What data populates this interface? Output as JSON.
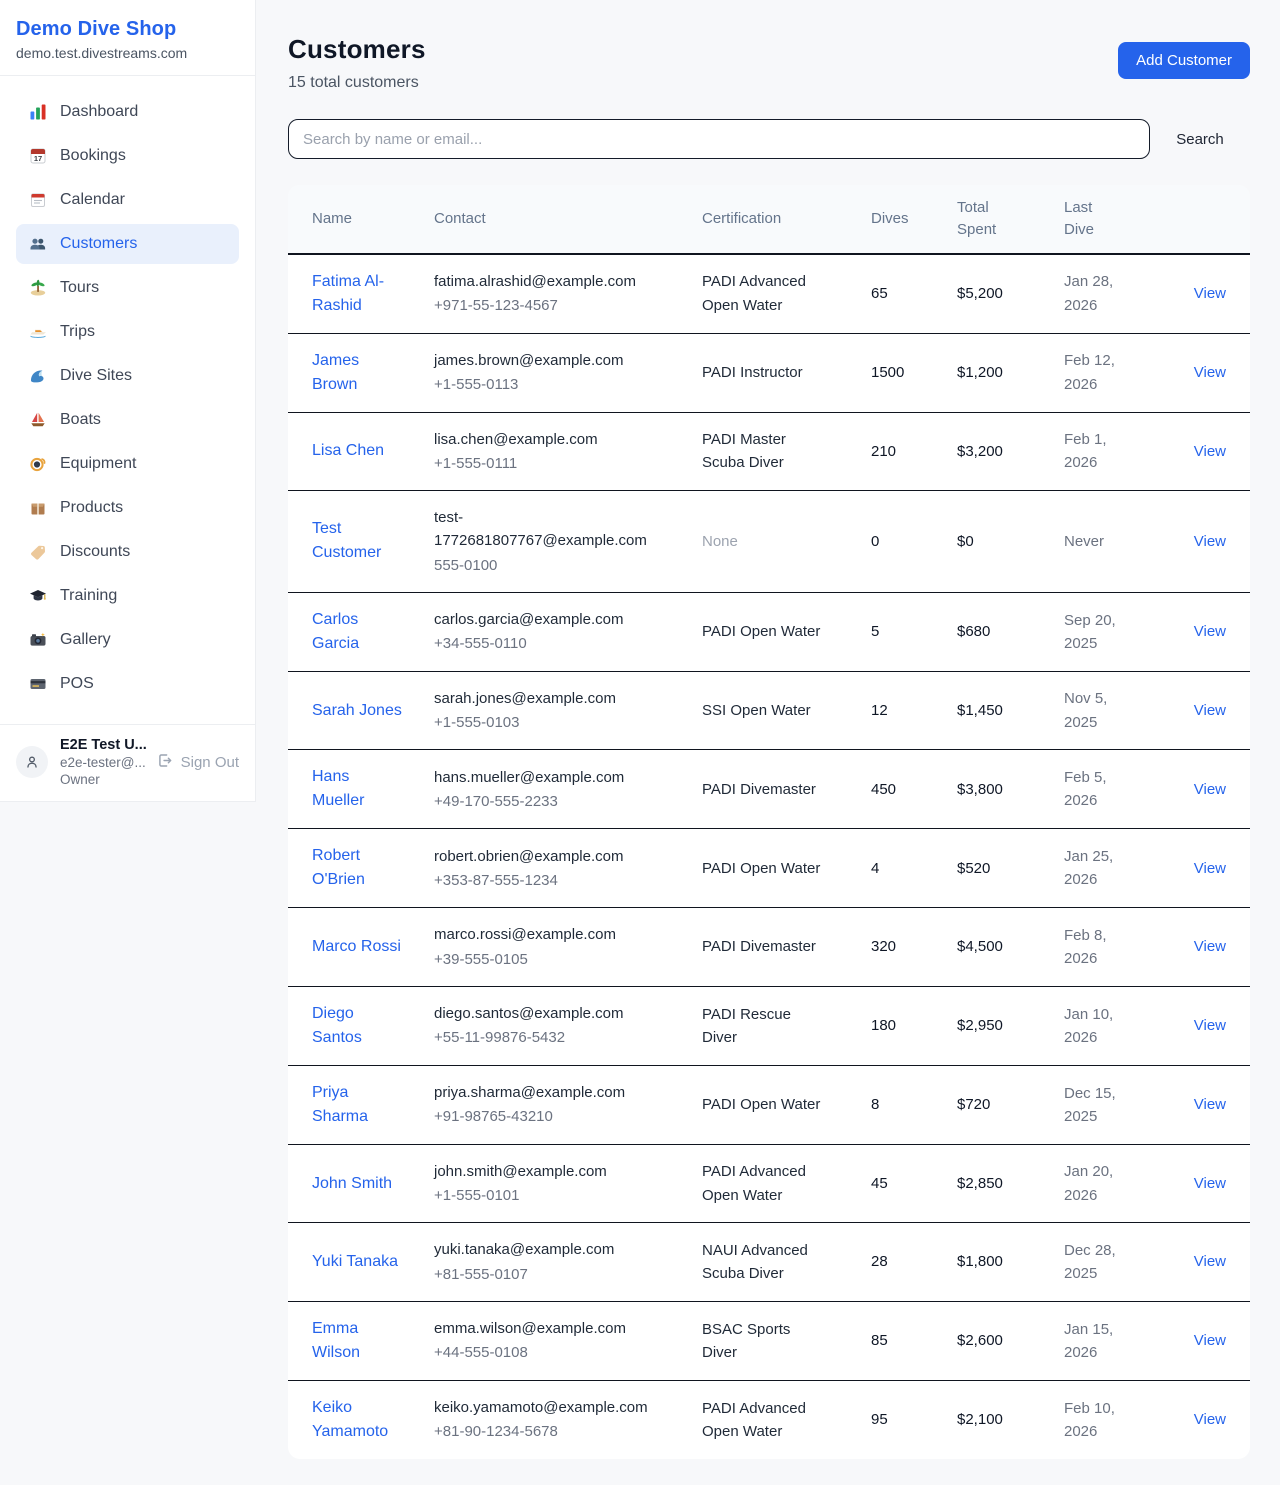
{
  "sidebar": {
    "shop_name": "Demo Dive Shop",
    "shop_domain": "demo.test.divestreams.com",
    "items": [
      {
        "label": "Dashboard",
        "icon": "dashboard-icon",
        "active": false
      },
      {
        "label": "Bookings",
        "icon": "bookings-calendar-icon",
        "active": false
      },
      {
        "label": "Calendar",
        "icon": "calendar-icon",
        "active": false
      },
      {
        "label": "Customers",
        "icon": "customers-icon",
        "active": true
      },
      {
        "label": "Tours",
        "icon": "island-icon",
        "active": false
      },
      {
        "label": "Trips",
        "icon": "speedboat-icon",
        "active": false
      },
      {
        "label": "Dive Sites",
        "icon": "wave-icon",
        "active": false
      },
      {
        "label": "Boats",
        "icon": "sailboat-icon",
        "active": false
      },
      {
        "label": "Equipment",
        "icon": "dive-mask-icon",
        "active": false
      },
      {
        "label": "Products",
        "icon": "package-icon",
        "active": false
      },
      {
        "label": "Discounts",
        "icon": "tag-icon",
        "active": false
      },
      {
        "label": "Training",
        "icon": "graduation-cap-icon",
        "active": false
      },
      {
        "label": "Gallery",
        "icon": "camera-icon",
        "active": false
      },
      {
        "label": "POS",
        "icon": "credit-card-icon",
        "active": false
      }
    ],
    "user": {
      "name": "E2E Test U...",
      "email": "e2e-tester@...",
      "role": "Owner",
      "sign_out_label": "Sign Out"
    }
  },
  "header": {
    "title": "Customers",
    "subtitle": "15 total customers",
    "add_button_label": "Add Customer"
  },
  "search": {
    "placeholder": "Search by name or email...",
    "button_label": "Search"
  },
  "table": {
    "columns": [
      "Name",
      "Contact",
      "Certification",
      "Dives",
      "Total Spent",
      "Last Dive"
    ],
    "view_label": "View",
    "customers": [
      {
        "name": "Fatima Al-Rashid",
        "email": "fatima.alrashid@example.com",
        "phone": "+971-55-123-4567",
        "certification": "PADI Advanced Open Water",
        "dives": "65",
        "total_spent": "$5,200",
        "last_dive": "Jan 28, 2026"
      },
      {
        "name": "James Brown",
        "email": "james.brown@example.com",
        "phone": "+1-555-0113",
        "certification": "PADI Instructor",
        "dives": "1500",
        "total_spent": "$1,200",
        "last_dive": "Feb 12, 2026"
      },
      {
        "name": "Lisa Chen",
        "email": "lisa.chen@example.com",
        "phone": "+1-555-0111",
        "certification": "PADI Master Scuba Diver",
        "dives": "210",
        "total_spent": "$3,200",
        "last_dive": "Feb 1, 2026"
      },
      {
        "name": "Test Customer",
        "email": "test-1772681807767@example.com",
        "phone": "555-0100",
        "certification": "None",
        "dives": "0",
        "total_spent": "$0",
        "last_dive": "Never"
      },
      {
        "name": "Carlos Garcia",
        "email": "carlos.garcia@example.com",
        "phone": "+34-555-0110",
        "certification": "PADI Open Water",
        "dives": "5",
        "total_spent": "$680",
        "last_dive": "Sep 20, 2025"
      },
      {
        "name": "Sarah Jones",
        "email": "sarah.jones@example.com",
        "phone": "+1-555-0103",
        "certification": "SSI Open Water",
        "dives": "12",
        "total_spent": "$1,450",
        "last_dive": "Nov 5, 2025"
      },
      {
        "name": "Hans Mueller",
        "email": "hans.mueller@example.com",
        "phone": "+49-170-555-2233",
        "certification": "PADI Divemaster",
        "dives": "450",
        "total_spent": "$3,800",
        "last_dive": "Feb 5, 2026"
      },
      {
        "name": "Robert O'Brien",
        "email": "robert.obrien@example.com",
        "phone": "+353-87-555-1234",
        "certification": "PADI Open Water",
        "dives": "4",
        "total_spent": "$520",
        "last_dive": "Jan 25, 2026"
      },
      {
        "name": "Marco Rossi",
        "email": "marco.rossi@example.com",
        "phone": "+39-555-0105",
        "certification": "PADI Divemaster",
        "dives": "320",
        "total_spent": "$4,500",
        "last_dive": "Feb 8, 2026"
      },
      {
        "name": "Diego Santos",
        "email": "diego.santos@example.com",
        "phone": "+55-11-99876-5432",
        "certification": "PADI Rescue Diver",
        "dives": "180",
        "total_spent": "$2,950",
        "last_dive": "Jan 10, 2026"
      },
      {
        "name": "Priya Sharma",
        "email": "priya.sharma@example.com",
        "phone": "+91-98765-43210",
        "certification": "PADI Open Water",
        "dives": "8",
        "total_spent": "$720",
        "last_dive": "Dec 15, 2025"
      },
      {
        "name": "John Smith",
        "email": "john.smith@example.com",
        "phone": "+1-555-0101",
        "certification": "PADI Advanced Open Water",
        "dives": "45",
        "total_spent": "$2,850",
        "last_dive": "Jan 20, 2026"
      },
      {
        "name": "Yuki Tanaka",
        "email": "yuki.tanaka@example.com",
        "phone": "+81-555-0107",
        "certification": "NAUI Advanced Scuba Diver",
        "dives": "28",
        "total_spent": "$1,800",
        "last_dive": "Dec 28, 2025"
      },
      {
        "name": "Emma Wilson",
        "email": "emma.wilson@example.com",
        "phone": "+44-555-0108",
        "certification": "BSAC Sports Diver",
        "dives": "85",
        "total_spent": "$2,600",
        "last_dive": "Jan 15, 2026"
      },
      {
        "name": "Keiko Yamamoto",
        "email": "keiko.yamamoto@example.com",
        "phone": "+81-90-1234-5678",
        "certification": "PADI Advanced Open Water",
        "dives": "95",
        "total_spent": "$2,100",
        "last_dive": "Feb 10, 2026"
      }
    ]
  },
  "colors": {
    "accent_blue": "#2563eb",
    "active_nav_bg": "#e9f0fc",
    "page_bg": "#f7f8fa",
    "dark_border": "#10151f",
    "muted_text": "#9ca3af"
  }
}
